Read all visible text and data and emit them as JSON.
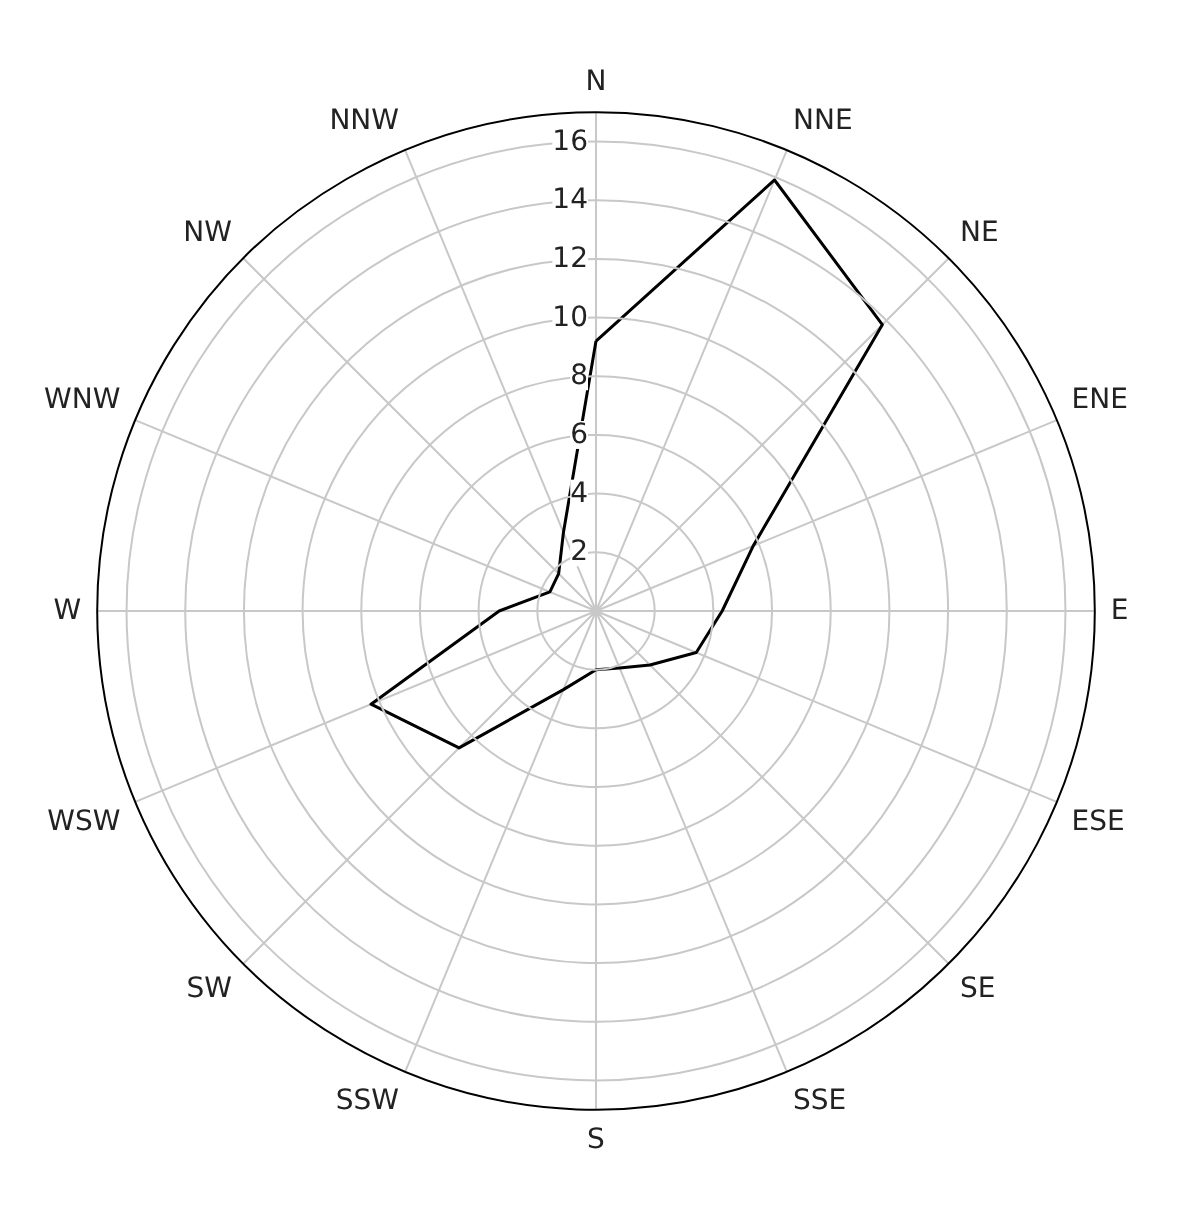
{
  "chart_data": {
    "type": "radar",
    "categories": [
      "N",
      "NNE",
      "NE",
      "ENE",
      "E",
      "ESE",
      "SE",
      "SSE",
      "S",
      "SSW",
      "SW",
      "WSW",
      "W",
      "WNW",
      "NW",
      "NNW"
    ],
    "series": [
      {
        "color": "#000000",
        "values": [
          9.2,
          15.9,
          13.8,
          5.8,
          4.3,
          3.7,
          2.6,
          2.1,
          2,
          2.9,
          6.6,
          8.3,
          3.3,
          1.7,
          1.8,
          2.9
        ]
      }
    ],
    "ylim": [
      0,
      17
    ],
    "yticks": [
      2,
      4,
      6,
      8,
      10,
      12,
      14,
      16
    ],
    "grid": true
  }
}
